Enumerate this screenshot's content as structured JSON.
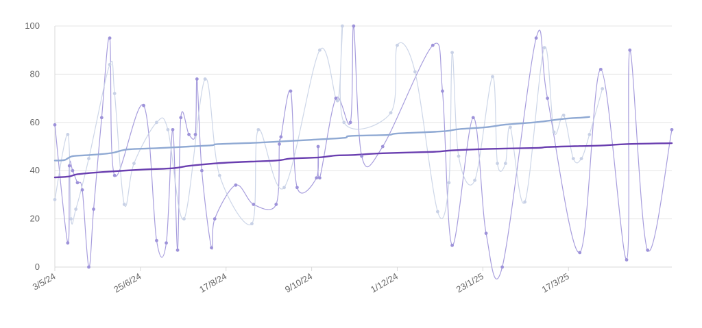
{
  "chart_data": {
    "type": "line",
    "title": "",
    "xlabel": "",
    "ylabel": "",
    "ylim": [
      0,
      100
    ],
    "yticks": [
      0,
      20,
      40,
      60,
      80,
      100
    ],
    "xlim": [
      "2024-05-03",
      "2025-05-20"
    ],
    "xticks": [
      {
        "date": "2024-05-03",
        "label": "3/5/24"
      },
      {
        "date": "2024-06-25",
        "label": "25/6/24"
      },
      {
        "date": "2024-08-17",
        "label": "17/8/24"
      },
      {
        "date": "2024-10-09",
        "label": "9/10/24"
      },
      {
        "date": "2024-12-01",
        "label": "1/12/24"
      },
      {
        "date": "2025-01-23",
        "label": "23/1/25"
      },
      {
        "date": "2025-03-17",
        "label": "17/3/25"
      }
    ],
    "grid": true,
    "legend": "none",
    "series": [
      {
        "color": "#9d92d9",
        "width": 1.2,
        "opacity": 0.9,
        "markers": true,
        "points": [
          [
            "2024-05-03",
            59
          ],
          [
            "2024-05-11",
            10
          ],
          [
            "2024-05-12",
            42
          ],
          [
            "2024-05-14",
            40
          ],
          [
            "2024-05-17",
            35
          ],
          [
            "2024-05-20",
            32
          ],
          [
            "2024-05-24",
            0
          ],
          [
            "2024-05-27",
            24
          ],
          [
            "2024-06-01",
            62
          ],
          [
            "2024-06-06",
            95
          ],
          [
            "2024-06-09",
            38
          ],
          [
            "2024-06-27",
            67
          ],
          [
            "2024-07-05",
            11
          ],
          [
            "2024-07-11",
            10
          ],
          [
            "2024-07-15",
            57
          ],
          [
            "2024-07-18",
            7
          ],
          [
            "2024-07-20",
            62
          ],
          [
            "2024-07-25",
            55
          ],
          [
            "2024-07-29",
            55
          ],
          [
            "2024-07-30",
            78
          ],
          [
            "2024-08-02",
            40
          ],
          [
            "2024-08-08",
            8
          ],
          [
            "2024-08-10",
            20
          ],
          [
            "2024-08-23",
            34
          ],
          [
            "2024-09-03",
            26
          ],
          [
            "2024-09-17",
            26
          ],
          [
            "2024-09-19",
            51
          ],
          [
            "2024-09-20",
            54
          ],
          [
            "2024-09-26",
            73
          ],
          [
            "2024-09-30",
            33
          ],
          [
            "2024-10-12",
            37
          ],
          [
            "2024-10-13",
            50
          ],
          [
            "2024-10-14",
            37
          ],
          [
            "2024-10-24",
            70
          ],
          [
            "2024-11-02",
            60
          ],
          [
            "2024-11-04",
            100
          ],
          [
            "2024-11-09",
            46
          ],
          [
            "2024-11-22",
            50
          ],
          [
            "2024-12-23",
            92
          ],
          [
            "2024-12-29",
            73
          ],
          [
            "2025-01-04",
            9
          ],
          [
            "2025-01-17",
            62
          ],
          [
            "2025-01-25",
            14
          ],
          [
            "2025-02-04",
            0
          ],
          [
            "2025-02-25",
            95
          ],
          [
            "2025-03-04",
            70
          ],
          [
            "2025-03-24",
            6
          ],
          [
            "2025-04-06",
            82
          ],
          [
            "2025-04-22",
            3
          ],
          [
            "2025-04-24",
            90
          ],
          [
            "2025-05-05",
            7
          ],
          [
            "2025-05-20",
            57
          ]
        ]
      },
      {
        "color": "#c8d1e6",
        "width": 1.2,
        "opacity": 0.9,
        "markers": true,
        "points": [
          [
            "2024-05-03",
            28
          ],
          [
            "2024-05-11",
            55
          ],
          [
            "2024-05-13",
            20
          ],
          [
            "2024-05-16",
            24
          ],
          [
            "2024-05-24",
            45
          ],
          [
            "2024-06-06",
            84
          ],
          [
            "2024-06-09",
            72
          ],
          [
            "2024-06-15",
            26
          ],
          [
            "2024-06-21",
            43
          ],
          [
            "2024-07-05",
            60
          ],
          [
            "2024-07-12",
            57
          ],
          [
            "2024-07-22",
            20
          ],
          [
            "2024-08-04",
            78
          ],
          [
            "2024-08-13",
            38
          ],
          [
            "2024-09-02",
            18
          ],
          [
            "2024-09-06",
            57
          ],
          [
            "2024-09-22",
            33
          ],
          [
            "2024-10-14",
            90
          ],
          [
            "2024-10-25",
            69
          ],
          [
            "2024-10-28",
            100
          ],
          [
            "2024-10-29",
            60
          ],
          [
            "2024-11-27",
            64
          ],
          [
            "2024-12-01",
            92
          ],
          [
            "2024-12-12",
            81
          ],
          [
            "2024-12-26",
            23
          ],
          [
            "2025-01-02",
            35
          ],
          [
            "2025-01-04",
            89
          ],
          [
            "2025-01-08",
            46
          ],
          [
            "2025-01-18",
            36
          ],
          [
            "2025-01-29",
            79
          ],
          [
            "2025-02-01",
            43
          ],
          [
            "2025-02-06",
            43
          ],
          [
            "2025-02-09",
            58
          ],
          [
            "2025-02-18",
            27
          ],
          [
            "2025-03-02",
            91
          ],
          [
            "2025-03-08",
            56
          ],
          [
            "2025-03-14",
            63
          ],
          [
            "2025-03-20",
            45
          ],
          [
            "2025-03-25",
            45
          ],
          [
            "2025-03-30",
            55
          ],
          [
            "2025-04-07",
            74
          ]
        ]
      },
      {
        "color": "#8fa9d3",
        "width": 2.4,
        "opacity": 1,
        "markers": false,
        "points": [
          [
            "2024-05-03",
            44.2
          ],
          [
            "2024-05-09",
            44.4
          ],
          [
            "2024-05-14",
            46
          ],
          [
            "2024-05-25",
            46.5
          ],
          [
            "2024-06-07",
            47.3
          ],
          [
            "2024-06-17",
            48.8
          ],
          [
            "2024-07-05",
            49.3
          ],
          [
            "2024-07-25",
            50
          ],
          [
            "2024-08-08",
            50.5
          ],
          [
            "2024-08-12",
            51
          ],
          [
            "2024-09-02",
            51.5
          ],
          [
            "2024-09-17",
            52
          ],
          [
            "2024-10-09",
            52.8
          ],
          [
            "2024-10-29",
            53.6
          ],
          [
            "2024-11-02",
            54.4
          ],
          [
            "2024-11-25",
            54.8
          ],
          [
            "2024-12-01",
            55.4
          ],
          [
            "2024-12-29",
            56.3
          ],
          [
            "2025-01-08",
            57.2
          ],
          [
            "2025-01-25",
            58
          ],
          [
            "2025-02-06",
            59.1
          ],
          [
            "2025-02-25",
            60.1
          ],
          [
            "2025-03-14",
            61.5
          ],
          [
            "2025-03-25",
            62
          ],
          [
            "2025-03-30",
            62.3
          ]
        ]
      },
      {
        "color": "#6a3fb0",
        "width": 2.4,
        "opacity": 1,
        "markers": false,
        "points": [
          [
            "2024-05-03",
            37.2
          ],
          [
            "2024-05-12",
            37.6
          ],
          [
            "2024-05-17",
            38.5
          ],
          [
            "2024-06-01",
            39.4
          ],
          [
            "2024-06-25",
            40.4
          ],
          [
            "2024-07-15",
            41
          ],
          [
            "2024-07-25",
            42
          ],
          [
            "2024-08-10",
            43
          ],
          [
            "2024-08-23",
            43.5
          ],
          [
            "2024-09-17",
            44.2
          ],
          [
            "2024-09-26",
            45
          ],
          [
            "2024-10-14",
            45.5
          ],
          [
            "2024-10-24",
            46.3
          ],
          [
            "2024-11-04",
            46.5
          ],
          [
            "2024-11-22",
            47.2
          ],
          [
            "2024-12-23",
            47.8
          ],
          [
            "2025-01-04",
            48.4
          ],
          [
            "2025-01-25",
            49
          ],
          [
            "2025-02-25",
            49.4
          ],
          [
            "2025-03-04",
            49.8
          ],
          [
            "2025-03-24",
            50.2
          ],
          [
            "2025-04-06",
            50.4
          ],
          [
            "2025-04-22",
            51
          ],
          [
            "2025-05-20",
            51.4
          ]
        ]
      }
    ]
  }
}
